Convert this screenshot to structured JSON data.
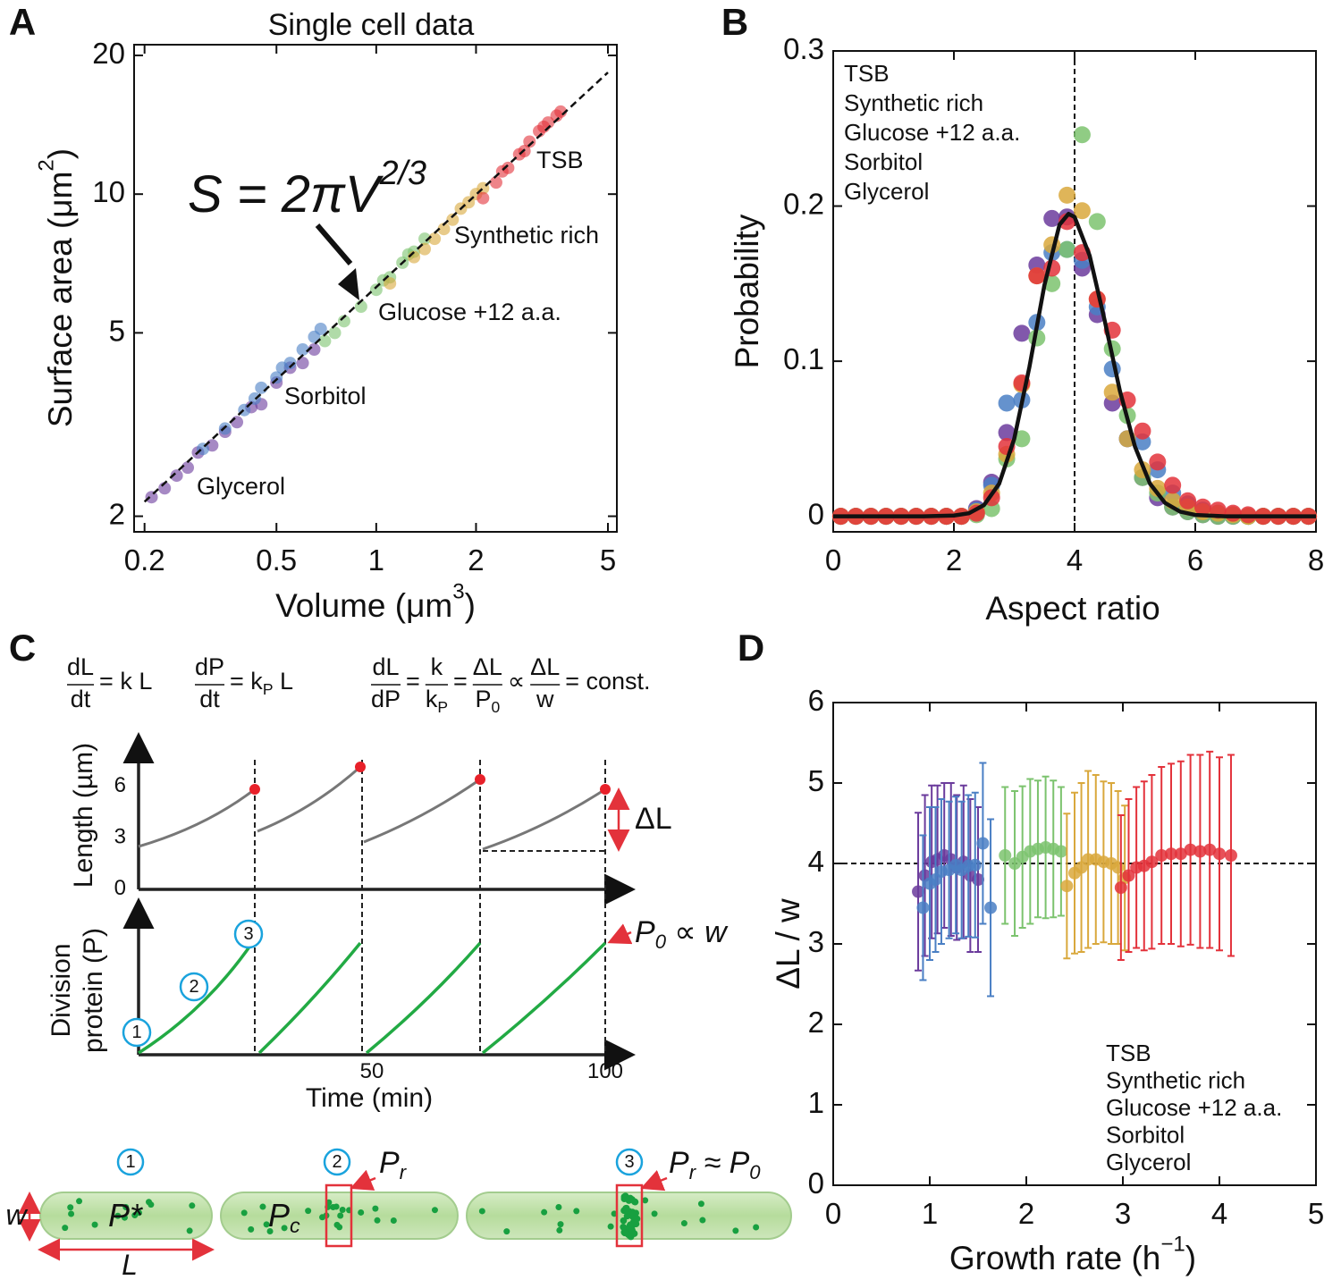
{
  "chart_data": [
    {
      "panel": "A",
      "type": "scatter",
      "title": "Single cell data",
      "xlabel": {
        "base": "Volume (μm",
        "sup": "3",
        "tail": ")"
      },
      "ylabel": {
        "base": "Surface area (μm",
        "sup": "2",
        "tail": ")"
      },
      "xscale": "log",
      "yscale": "log",
      "xlim": [
        0.186,
        5.32
      ],
      "ylim": [
        1.85,
        21.1
      ],
      "xticks": [
        0.2,
        0.5,
        1,
        2,
        5
      ],
      "yticks": [
        2,
        5,
        10,
        20
      ],
      "legend": "inline",
      "annotation": {
        "base": "S = 2πV",
        "sup": "2/3"
      },
      "fit": {
        "x": [
          0.2,
          5
        ],
        "y": [
          2.15,
          18.37
        ],
        "dashed": true
      },
      "series": [
        {
          "name": "TSB",
          "color": "#e3323b",
          "x": [
            2.1,
            2.3,
            2.5,
            2.7,
            2.9,
            3.1,
            3.3,
            3.5,
            3.6,
            2.4,
            2.8,
            3.2
          ],
          "values": [
            9.8,
            10.6,
            11.4,
            12.2,
            13.0,
            13.7,
            14.3,
            14.8,
            15.1,
            11.2,
            12.4,
            14.0
          ]
        },
        {
          "name": "Synthetic rich",
          "color": "#d9a83c",
          "x": [
            1.1,
            1.3,
            1.5,
            1.6,
            1.7,
            1.9,
            2.0,
            2.1,
            1.4,
            1.8
          ],
          "values": [
            6.4,
            7.3,
            8.0,
            8.4,
            8.8,
            9.6,
            10.0,
            10.3,
            7.6,
            9.3
          ]
        },
        {
          "name": "Glucose +12 a.a.",
          "color": "#7cc36e",
          "x": [
            0.7,
            0.8,
            0.9,
            1.0,
            1.05,
            1.1,
            1.2,
            1.3,
            1.4,
            0.75,
            1.25
          ],
          "values": [
            4.8,
            5.3,
            5.7,
            6.2,
            6.5,
            6.6,
            7.1,
            7.5,
            8.0,
            5.0,
            7.4
          ]
        },
        {
          "name": "Sorbitol",
          "color": "#4a7fc4",
          "x": [
            0.3,
            0.35,
            0.4,
            0.43,
            0.45,
            0.5,
            0.55,
            0.6,
            0.65,
            0.68,
            0.52
          ],
          "values": [
            2.8,
            3.1,
            3.4,
            3.6,
            3.8,
            4.0,
            4.3,
            4.6,
            4.9,
            5.1,
            4.2
          ]
        },
        {
          "name": "Glycerol",
          "color": "#6b3b9c",
          "x": [
            0.21,
            0.23,
            0.25,
            0.27,
            0.29,
            0.32,
            0.35,
            0.38,
            0.42,
            0.45,
            0.5,
            0.55,
            0.6,
            0.65
          ],
          "values": [
            2.2,
            2.3,
            2.45,
            2.55,
            2.75,
            2.85,
            3.05,
            3.2,
            3.45,
            3.5,
            3.9,
            4.2,
            4.3,
            4.6
          ]
        }
      ]
    },
    {
      "panel": "B",
      "type": "scatter",
      "xlabel": "Aspect ratio",
      "ylabel": "Probability",
      "xlim": [
        0,
        8
      ],
      "ylim": [
        -0.01,
        0.3
      ],
      "xticks": [
        0,
        2,
        4,
        6,
        8
      ],
      "yticks": [
        0,
        0.1,
        0.2,
        0.3
      ],
      "legend": "upper left",
      "vline": 4,
      "fit": {
        "x": [
          0,
          0.5,
          1,
          1.5,
          2,
          2.25,
          2.5,
          2.75,
          3,
          3.25,
          3.5,
          3.75,
          3.9,
          4,
          4.25,
          4.5,
          4.75,
          5,
          5.25,
          5.5,
          5.75,
          6,
          6.5,
          7,
          7.5,
          8
        ],
        "y": [
          0,
          0,
          0,
          0,
          0.0005,
          0.002,
          0.0073,
          0.021,
          0.05,
          0.096,
          0.149,
          0.188,
          0.195,
          0.193,
          0.168,
          0.126,
          0.081,
          0.045,
          0.021,
          0.0086,
          0.003,
          0.0009,
          0,
          0,
          0,
          0
        ]
      },
      "x": [
        0.125,
        0.375,
        0.625,
        0.875,
        1.125,
        1.375,
        1.625,
        1.875,
        2.125,
        2.375,
        2.625,
        2.875,
        3.125,
        3.375,
        3.625,
        3.875,
        4.125,
        4.375,
        4.625,
        4.875,
        5.125,
        5.375,
        5.625,
        5.875,
        6.125,
        6.375,
        6.625,
        6.875,
        7.125,
        7.375,
        7.625,
        7.875
      ],
      "series": [
        {
          "name": "TSB",
          "color": "#e3323b",
          "values": [
            0,
            0,
            0,
            0,
            0,
            0,
            0,
            0,
            0,
            0.002,
            0.012,
            0.045,
            0.086,
            0.155,
            0.16,
            0.19,
            0.17,
            0.14,
            0.12,
            0.075,
            0.055,
            0.035,
            0.02,
            0.01,
            0.006,
            0.004,
            0.002,
            0.001,
            0,
            0,
            0,
            0
          ]
        },
        {
          "name": "Synthetic rich",
          "color": "#d9a83c",
          "values": [
            0,
            0,
            0,
            0,
            0,
            0,
            0,
            0,
            0,
            0.003,
            0.015,
            0.04,
            0.085,
            0.155,
            0.175,
            0.207,
            0.197,
            0.14,
            0.08,
            0.05,
            0.03,
            0.018,
            0.01,
            0.006,
            0.003,
            0.002,
            0.001,
            0,
            0,
            0,
            0,
            0
          ]
        },
        {
          "name": "Glucose +12 a.a.",
          "color": "#7cc36e",
          "values": [
            0,
            0,
            0,
            0,
            0,
            0,
            0,
            0,
            0,
            0.001,
            0.005,
            0.037,
            0.05,
            0.115,
            0.15,
            0.172,
            0.246,
            0.19,
            0.108,
            0.065,
            0.025,
            0.015,
            0.006,
            0.003,
            0.001,
            0,
            0,
            0,
            0,
            0,
            0,
            0
          ]
        },
        {
          "name": "Sorbitol",
          "color": "#4a7fc4",
          "values": [
            0,
            0,
            0,
            0,
            0,
            0,
            0,
            0,
            0,
            0.004,
            0.02,
            0.073,
            0.075,
            0.125,
            0.17,
            0.172,
            0.165,
            0.135,
            0.095,
            0.05,
            0.048,
            0.03,
            0.015,
            0.008,
            0.004,
            0.002,
            0.001,
            0,
            0,
            0,
            0,
            0
          ]
        },
        {
          "name": "Glycerol",
          "color": "#6b3b9c",
          "values": [
            0,
            0,
            0,
            0,
            0,
            0,
            0,
            0,
            0,
            0.005,
            0.022,
            0.054,
            0.118,
            0.162,
            0.192,
            0.193,
            0.16,
            0.13,
            0.073,
            0.05,
            0.025,
            0.012,
            0.006,
            0.003,
            0.001,
            0,
            0,
            0,
            0,
            0,
            0,
            0
          ]
        }
      ]
    },
    {
      "panel": "D",
      "type": "scatter",
      "xlabel": {
        "base": "Growth rate (h",
        "sup": "−1",
        "tail": ")"
      },
      "ylabel": "ΔL / w",
      "xlim": [
        0,
        5
      ],
      "ylim": [
        0,
        6
      ],
      "xticks": [
        0,
        1,
        2,
        3,
        4,
        5
      ],
      "yticks": [
        0,
        1,
        2,
        3,
        4,
        5,
        6
      ],
      "legend": "lower right",
      "hline": 4,
      "series": [
        {
          "name": "TSB",
          "color": "#e3323b",
          "x": [
            2.98,
            3.06,
            3.14,
            3.22,
            3.3,
            3.4,
            3.5,
            3.6,
            3.7,
            3.8,
            3.9,
            4.0,
            4.12
          ],
          "values": [
            3.7,
            3.85,
            3.95,
            3.97,
            4.02,
            4.1,
            4.12,
            4.12,
            4.17,
            4.15,
            4.17,
            4.12,
            4.1
          ],
          "errors": [
            0.9,
            0.95,
            1.0,
            1.05,
            1.08,
            1.1,
            1.12,
            1.15,
            1.18,
            1.2,
            1.22,
            1.2,
            1.25
          ]
        },
        {
          "name": "Synthetic rich",
          "color": "#d9a83c",
          "x": [
            2.42,
            2.5,
            2.57,
            2.64,
            2.72,
            2.8,
            2.88,
            2.95,
            3.02
          ],
          "values": [
            3.72,
            3.88,
            3.95,
            4.05,
            4.05,
            4.02,
            4.0,
            3.95,
            3.82
          ],
          "errors": [
            0.9,
            1.0,
            1.05,
            1.1,
            1.05,
            1.0,
            1.0,
            0.95,
            0.9
          ]
        },
        {
          "name": "Glucose +12 a.a.",
          "color": "#7cc36e",
          "x": [
            1.78,
            1.88,
            1.96,
            2.04,
            2.12,
            2.2,
            2.28,
            2.36
          ],
          "values": [
            4.1,
            4.0,
            4.08,
            4.15,
            4.18,
            4.2,
            4.18,
            4.15
          ],
          "errors": [
            0.85,
            0.9,
            0.88,
            0.9,
            0.85,
            0.88,
            0.85,
            0.8
          ]
        },
        {
          "name": "Sorbitol",
          "color": "#4a7fc4",
          "x": [
            0.93,
            1.0,
            1.06,
            1.12,
            1.2,
            1.27,
            1.33,
            1.4,
            1.47,
            1.55,
            1.63
          ],
          "values": [
            3.45,
            3.75,
            3.8,
            3.9,
            3.92,
            3.98,
            3.92,
            3.97,
            3.98,
            4.25,
            3.45
          ],
          "errors": [
            0.9,
            0.95,
            0.9,
            0.9,
            0.85,
            0.85,
            0.85,
            0.88,
            0.9,
            1.0,
            1.1
          ]
        },
        {
          "name": "Glycerol",
          "color": "#6b3b9c",
          "x": [
            0.88,
            0.95,
            1.02,
            1.08,
            1.15,
            1.22,
            1.28,
            1.35,
            1.42,
            1.5
          ],
          "values": [
            3.65,
            3.85,
            4.02,
            4.05,
            4.1,
            4.05,
            3.95,
            4.02,
            3.85,
            3.8
          ],
          "errors": [
            0.98,
            1.0,
            0.95,
            0.92,
            0.9,
            0.95,
            0.9,
            0.95,
            0.95,
            0.9
          ]
        }
      ]
    }
  ],
  "panel_c": {
    "label": "C",
    "equations": [
      [
        {
          "num": "dL",
          "den": "dt"
        },
        {
          "text": "= k L"
        }
      ],
      [
        {
          "num": "dP",
          "den": "dt"
        },
        {
          "text": {
            "base": "= k",
            "sub": "P",
            "tail": " L"
          }
        }
      ],
      [
        {
          "num": "dL",
          "den": "dP"
        },
        {
          "text": "="
        },
        {
          "num": "k",
          "den": {
            "base": "k",
            "sub": "P"
          }
        },
        {
          "text": "="
        },
        {
          "num": "ΔL",
          "den": {
            "base": "P",
            "sub": "0"
          }
        },
        {
          "text": "∝"
        },
        {
          "num": "ΔL",
          "den": "w"
        },
        {
          "text": "= const."
        }
      ]
    ],
    "length_label": "Length (µm)",
    "length_ticks": [
      0,
      3,
      6
    ],
    "protein_label": [
      "Division",
      "protein (P)"
    ],
    "time_label": "Time (min)",
    "time_ticks": [
      50,
      100
    ],
    "delta_l": "ΔL",
    "p0": {
      "base": "P",
      "sub": "0",
      "tail": " ∝ w"
    },
    "steps": [
      "1",
      "2",
      "3"
    ],
    "cell_labels": [
      "P*",
      {
        "base": "P",
        "sub": "c"
      }
    ],
    "pr": {
      "base": "P",
      "sub": "r"
    },
    "pr_p0": [
      {
        "base": "P",
        "sub": "r"
      },
      {
        "base": " ≈ P",
        "sub": "0"
      }
    ],
    "width": "w",
    "length": "L"
  }
}
